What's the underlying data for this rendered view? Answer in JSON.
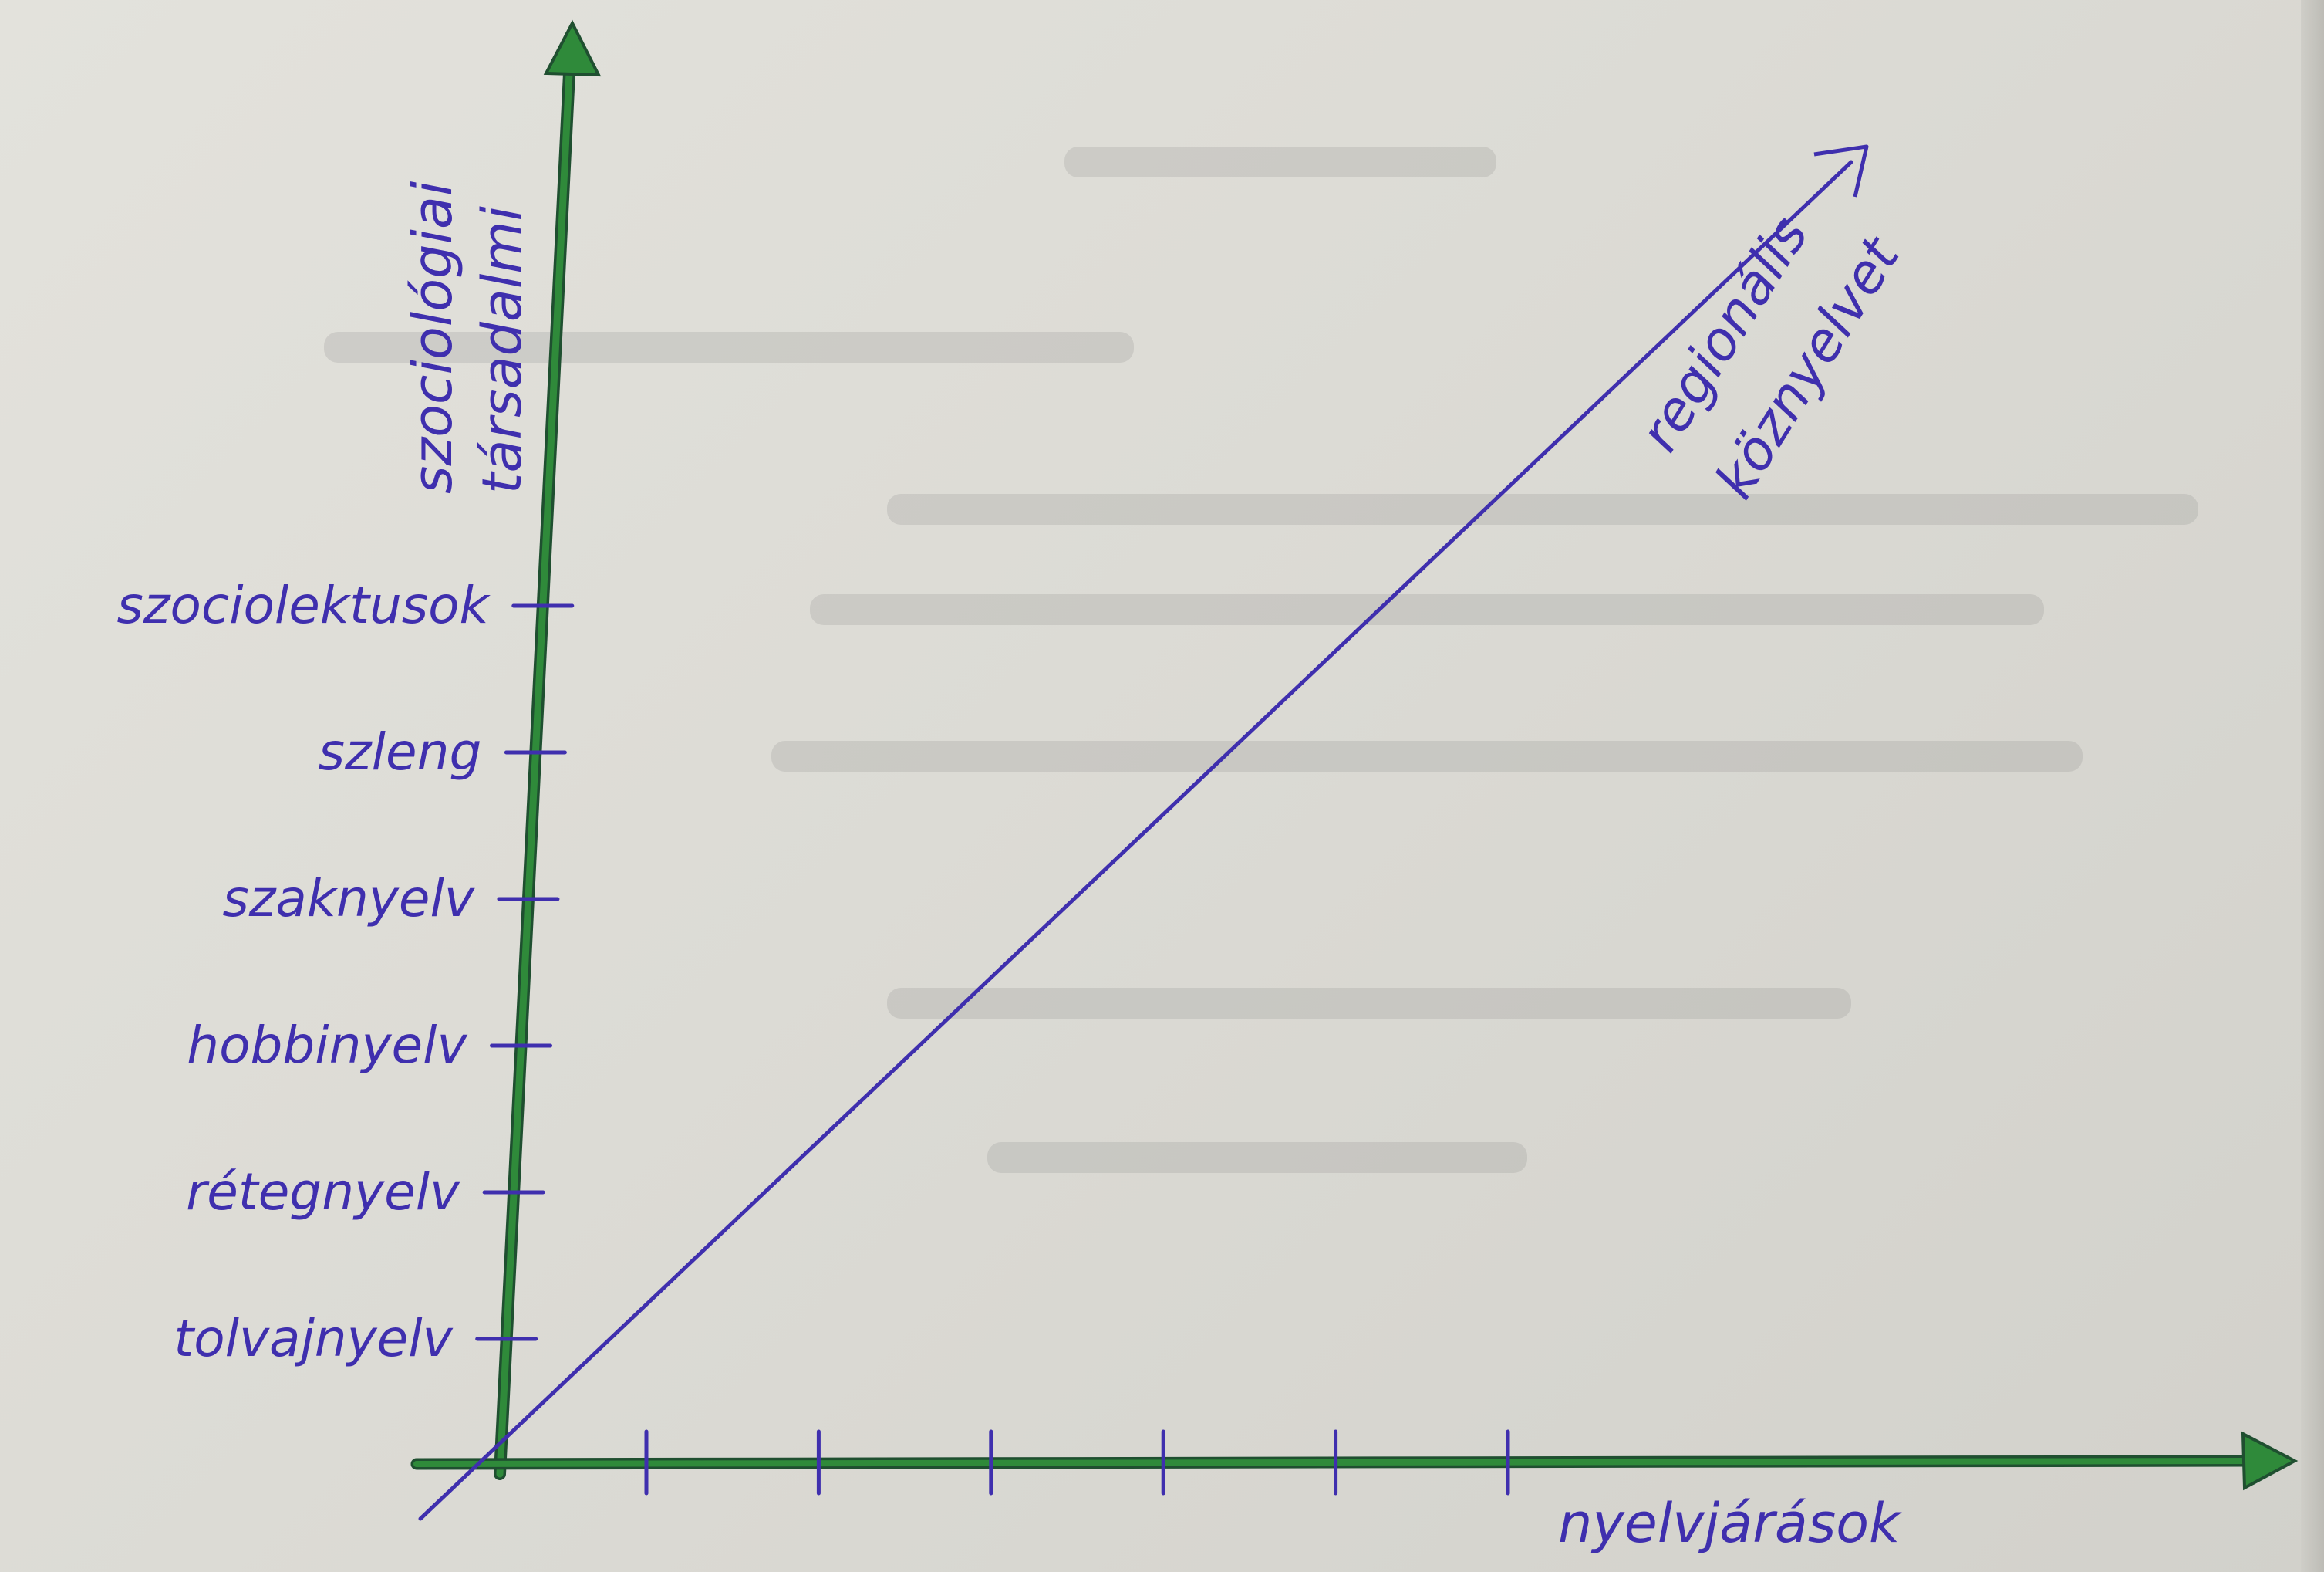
{
  "y_axis": {
    "title_lines": [
      "szociológiai",
      "társadalmi"
    ],
    "levels": [
      "tolvajnyelv",
      "rétegnyelv",
      "hobbinyelv",
      "szaknyelv",
      "szleng",
      "szociolektusok"
    ]
  },
  "x_axis": {
    "title": "nyelvjárások",
    "tick_count": 6
  },
  "diagonal": {
    "title_lines": [
      "regionális",
      "köznyelvet"
    ]
  },
  "colors": {
    "axis_green": "#2f8a3a",
    "ink_blue": "#3f2fae",
    "paper": "#e0dfd9"
  }
}
